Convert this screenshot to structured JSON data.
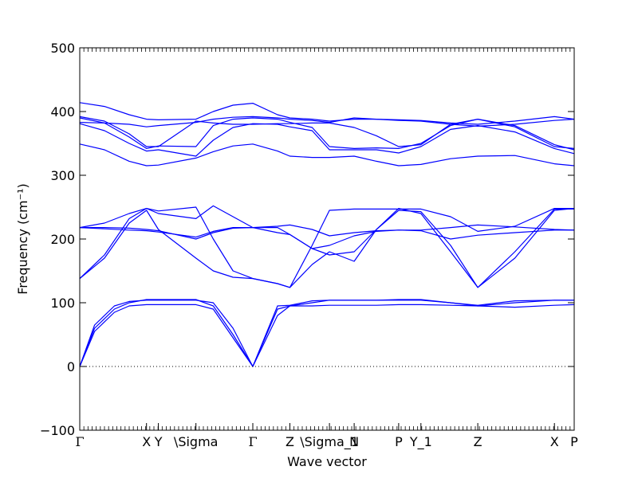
{
  "chart_data": {
    "type": "line",
    "title": "",
    "xlabel": "Wave vector",
    "ylabel": "Frequency (cm⁻¹)",
    "ylim": [
      -100,
      500
    ],
    "xlim": [
      0,
      1
    ],
    "yticks": [
      "−100",
      "0",
      "100",
      "200",
      "300",
      "400",
      "500"
    ],
    "x_ticks": [
      {
        "label": "Γ",
        "x": 0.0,
        "gamma": true
      },
      {
        "label": "X",
        "x": 0.135
      },
      {
        "label": "Y",
        "x": 0.159
      },
      {
        "label": "\\Sigma",
        "x": 0.235
      },
      {
        "label": "Γ",
        "x": 0.35,
        "gamma": true
      },
      {
        "label": "Z",
        "x": 0.425
      },
      {
        "label": "\\Sigma_1",
        "x": 0.505
      },
      {
        "label": "N",
        "x": 0.555
      },
      {
        "label": "P",
        "x": 0.645
      },
      {
        "label": "Y_1",
        "x": 0.69
      },
      {
        "label": "Z",
        "x": 0.805
      },
      {
        "label": "X",
        "x": 0.96
      },
      {
        "label": "P",
        "x": 1.0
      }
    ],
    "line_color": "#0000ff",
    "zero_line": true,
    "grid": false,
    "legend": "none",
    "series": [
      {
        "x": [
          0,
          0.03,
          0.07,
          0.1,
          0.135,
          0.159,
          0.22,
          0.235,
          0.27,
          0.31,
          0.35,
          0.4,
          0.425,
          0.47,
          0.505,
          0.555,
          0.6,
          0.645,
          0.69,
          0.75,
          0.805,
          0.88,
          0.96,
          1.0
        ],
        "y": [
          0,
          60,
          90,
          100,
          105,
          105,
          105,
          105,
          95,
          50,
          0,
          90,
          95,
          100,
          104,
          104,
          104,
          105,
          105,
          100,
          95,
          100,
          104,
          104
        ]
      },
      {
        "x": [
          0,
          0.03,
          0.07,
          0.1,
          0.135,
          0.159,
          0.22,
          0.235,
          0.27,
          0.31,
          0.35,
          0.4,
          0.425,
          0.47,
          0.505,
          0.555,
          0.6,
          0.645,
          0.69,
          0.75,
          0.805,
          0.88,
          0.96,
          1.0
        ],
        "y": [
          0,
          55,
          85,
          95,
          97,
          97,
          97,
          97,
          90,
          45,
          0,
          80,
          95,
          95,
          96,
          96,
          96,
          97,
          97,
          96,
          95,
          93,
          96,
          97
        ]
      },
      {
        "x": [
          0,
          0.03,
          0.07,
          0.1,
          0.135,
          0.159,
          0.22,
          0.235,
          0.27,
          0.31,
          0.35,
          0.4,
          0.425,
          0.47,
          0.505,
          0.555,
          0.6,
          0.645,
          0.69,
          0.75,
          0.805,
          0.88,
          0.96,
          1.0
        ],
        "y": [
          0,
          65,
          95,
          102,
          104,
          104,
          104,
          104,
          100,
          60,
          0,
          95,
          96,
          103,
          104,
          104,
          104,
          104,
          104,
          100,
          96,
          103,
          104,
          104
        ]
      },
      {
        "x": [
          0,
          0.05,
          0.1,
          0.135,
          0.159,
          0.235,
          0.27,
          0.31,
          0.35,
          0.4,
          0.425,
          0.47,
          0.505,
          0.555,
          0.6,
          0.645,
          0.69,
          0.75,
          0.805,
          0.88,
          0.96,
          1.0
        ],
        "y": [
          138,
          175,
          232,
          248,
          240,
          232,
          252,
          235,
          218,
          218,
          207,
          185,
          175,
          180,
          215,
          248,
          240,
          180,
          124,
          170,
          245,
          248
        ]
      },
      {
        "x": [
          0,
          0.05,
          0.1,
          0.135,
          0.159,
          0.235,
          0.27,
          0.31,
          0.35,
          0.4,
          0.425,
          0.47,
          0.505,
          0.555,
          0.6,
          0.645,
          0.69,
          0.75,
          0.805,
          0.88,
          0.96,
          1.0
        ],
        "y": [
          138,
          170,
          225,
          245,
          215,
          170,
          150,
          140,
          138,
          130,
          124,
          160,
          180,
          165,
          215,
          245,
          243,
          190,
          124,
          180,
          247,
          247
        ]
      },
      {
        "x": [
          0,
          0.05,
          0.1,
          0.135,
          0.159,
          0.235,
          0.27,
          0.31,
          0.35,
          0.4,
          0.425,
          0.47,
          0.505,
          0.555,
          0.6,
          0.645,
          0.69,
          0.75,
          0.805,
          0.88,
          0.96,
          1.0
        ],
        "y": [
          218,
          225,
          240,
          248,
          244,
          250,
          200,
          150,
          138,
          130,
          124,
          190,
          245,
          247,
          247,
          247,
          247,
          235,
          212,
          220,
          248,
          248
        ]
      },
      {
        "x": [
          0,
          0.05,
          0.1,
          0.135,
          0.159,
          0.235,
          0.27,
          0.31,
          0.35,
          0.4,
          0.425,
          0.47,
          0.505,
          0.555,
          0.6,
          0.645,
          0.69,
          0.75,
          0.805,
          0.88,
          0.96,
          1.0
        ],
        "y": [
          218,
          216,
          214,
          213,
          211,
          203,
          212,
          218,
          218,
          210,
          207,
          185,
          190,
          205,
          212,
          214,
          213,
          200,
          206,
          210,
          214,
          214
        ]
      },
      {
        "x": [
          0,
          0.05,
          0.1,
          0.135,
          0.159,
          0.235,
          0.27,
          0.31,
          0.35,
          0.4,
          0.425,
          0.47,
          0.505,
          0.555,
          0.6,
          0.645,
          0.69,
          0.75,
          0.805,
          0.88,
          0.96,
          1.0
        ],
        "y": [
          218,
          218,
          217,
          215,
          213,
          200,
          210,
          217,
          218,
          220,
          222,
          215,
          205,
          210,
          213,
          214,
          214,
          218,
          222,
          219,
          215,
          214
        ]
      },
      {
        "x": [
          0,
          0.05,
          0.1,
          0.135,
          0.159,
          0.235,
          0.27,
          0.31,
          0.35,
          0.4,
          0.425,
          0.47,
          0.505,
          0.555,
          0.6,
          0.645,
          0.69,
          0.75,
          0.805,
          0.88,
          0.96,
          1.0
        ],
        "y": [
          349,
          340,
          322,
          315,
          316,
          327,
          337,
          346,
          349,
          338,
          330,
          328,
          328,
          330,
          322,
          315,
          317,
          326,
          330,
          331,
          318,
          315
        ]
      },
      {
        "x": [
          0,
          0.05,
          0.1,
          0.135,
          0.159,
          0.235,
          0.27,
          0.31,
          0.35,
          0.4,
          0.425,
          0.47,
          0.505,
          0.555,
          0.6,
          0.645,
          0.69,
          0.75,
          0.805,
          0.88,
          0.96,
          1.0
        ],
        "y": [
          381,
          370,
          350,
          338,
          340,
          330,
          355,
          375,
          381,
          380,
          376,
          370,
          340,
          340,
          340,
          335,
          345,
          372,
          378,
          368,
          342,
          334
        ]
      },
      {
        "x": [
          0,
          0.05,
          0.1,
          0.135,
          0.159,
          0.235,
          0.27,
          0.31,
          0.35,
          0.4,
          0.425,
          0.47,
          0.505,
          0.555,
          0.6,
          0.645,
          0.69,
          0.75,
          0.805,
          0.88,
          0.96,
          1.0
        ],
        "y": [
          390,
          382,
          360,
          342,
          346,
          345,
          378,
          388,
          390,
          388,
          383,
          375,
          345,
          342,
          343,
          342,
          350,
          378,
          388,
          376,
          345,
          342
        ]
      },
      {
        "x": [
          0,
          0.05,
          0.1,
          0.135,
          0.159,
          0.235,
          0.27,
          0.31,
          0.35,
          0.4,
          0.425,
          0.47,
          0.505,
          0.555,
          0.6,
          0.645,
          0.69,
          0.75,
          0.805,
          0.88,
          0.96,
          1.0
        ],
        "y": [
          392,
          385,
          365,
          345,
          345,
          385,
          382,
          380,
          380,
          381,
          381,
          382,
          382,
          375,
          362,
          345,
          348,
          380,
          388,
          378,
          348,
          340
        ]
      },
      {
        "x": [
          0,
          0.05,
          0.1,
          0.135,
          0.159,
          0.235,
          0.27,
          0.31,
          0.35,
          0.4,
          0.425,
          0.47,
          0.505,
          0.555,
          0.6,
          0.645,
          0.69,
          0.75,
          0.805,
          0.88,
          0.96,
          1.0
        ],
        "y": [
          383,
          382,
          380,
          376,
          378,
          383,
          388,
          391,
          392,
          390,
          388,
          386,
          383,
          390,
          388,
          386,
          385,
          380,
          377,
          380,
          386,
          388
        ]
      },
      {
        "x": [
          0,
          0.05,
          0.1,
          0.135,
          0.159,
          0.235,
          0.27,
          0.31,
          0.35,
          0.4,
          0.425,
          0.47,
          0.505,
          0.555,
          0.6,
          0.645,
          0.69,
          0.75,
          0.805,
          0.88,
          0.96,
          1.0
        ],
        "y": [
          414,
          408,
          395,
          388,
          387,
          388,
          400,
          410,
          413,
          395,
          390,
          388,
          385,
          388,
          388,
          387,
          386,
          382,
          380,
          385,
          392,
          388
        ]
      }
    ]
  }
}
